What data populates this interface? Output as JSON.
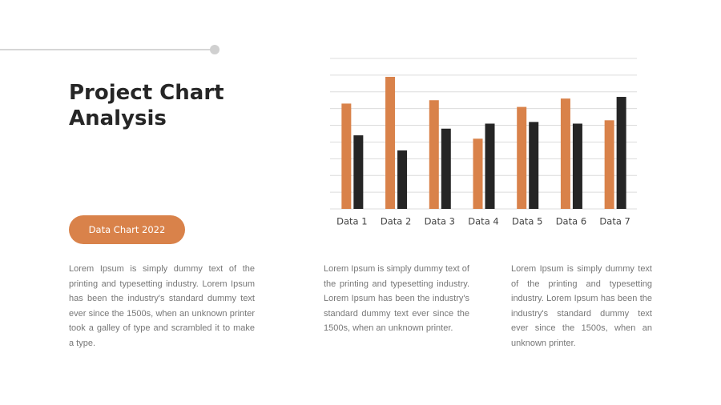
{
  "title": "Project Chart Analysis",
  "button": "Data Chart 2022",
  "paragraphs": [
    "Lorem Ipsum is simply dummy text of the printing and typesetting industry.  Lorem Ipsum has been the industry's standard dummy text ever since the 1500s,  when an unknown printer took a galley of type and scrambled it to make a type.",
    "Lorem Ipsum is simply dummy text of the printing and typesetting industry. Lorem Ipsum has been the industry's standard dummy text ever since the 1500s, when an unknown printer.",
    "Lorem Ipsum is simply dummy text of the printing and typesetting industry. Lorem Ipsum has been the industry's standard dummy text ever since the 1500s, when an unknown printer."
  ],
  "chart_data": {
    "type": "bar",
    "categories": [
      "Data 1",
      "Data 2",
      "Data 3",
      "Data 4",
      "Data 5",
      "Data 6",
      "Data 7"
    ],
    "series": [
      {
        "color": "#d9824a",
        "values": [
          6.3,
          7.9,
          6.5,
          4.2,
          6.1,
          6.6,
          5.3
        ]
      },
      {
        "color": "#252525",
        "values": [
          4.4,
          3.5,
          4.8,
          5.1,
          5.2,
          5.1,
          6.7
        ]
      }
    ],
    "ylim": [
      0,
      9
    ],
    "yticks": [
      0,
      1,
      2,
      3,
      4,
      5,
      6,
      7,
      8,
      9
    ],
    "grid": true
  }
}
